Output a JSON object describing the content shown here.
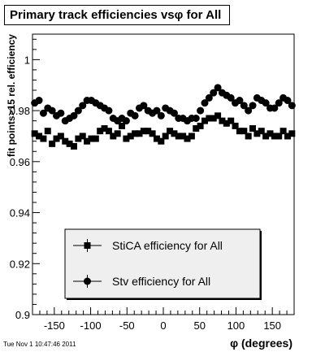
{
  "title": "Primary track efficiencies vsφ for All",
  "timestamp": "Tue Nov  1 10:47:46 2011",
  "chart_data": {
    "type": "scatter",
    "xlabel": "φ (degrees)",
    "ylabel": "fit points>15 rel. efficiency",
    "xlim": [
      -180,
      180
    ],
    "ylim": [
      0.9,
      1.01
    ],
    "xticks": [
      -150,
      -100,
      -50,
      0,
      50,
      100,
      150
    ],
    "xtick_labels": [
      "-150",
      "-100",
      "-50",
      "0",
      "50",
      "100",
      "150"
    ],
    "yticks": [
      0.9,
      0.92,
      0.94,
      0.96,
      0.98,
      1.0
    ],
    "ytick_labels": [
      "0.9",
      "0.92",
      "0.94",
      "0.96",
      "0.98",
      "1"
    ],
    "grid": false,
    "legend_position": "bottom-center",
    "series": [
      {
        "name": "StiCA efficiency  for All",
        "marker": "square",
        "color": "#000000",
        "x": [
          -177,
          -171,
          -165,
          -159,
          -153,
          -147,
          -141,
          -135,
          -129,
          -123,
          -117,
          -111,
          -105,
          -99,
          -93,
          -87,
          -81,
          -75,
          -69,
          -63,
          -57,
          -51,
          -45,
          -39,
          -33,
          -27,
          -21,
          -15,
          -9,
          -3,
          3,
          9,
          15,
          21,
          27,
          33,
          39,
          45,
          51,
          57,
          63,
          69,
          75,
          81,
          87,
          93,
          99,
          105,
          111,
          117,
          123,
          129,
          135,
          141,
          147,
          153,
          159,
          165,
          171,
          177
        ],
        "y": [
          0.971,
          0.97,
          0.969,
          0.972,
          0.967,
          0.969,
          0.97,
          0.968,
          0.967,
          0.966,
          0.969,
          0.97,
          0.968,
          0.969,
          0.969,
          0.972,
          0.973,
          0.972,
          0.97,
          0.971,
          0.974,
          0.969,
          0.97,
          0.971,
          0.971,
          0.972,
          0.972,
          0.971,
          0.969,
          0.968,
          0.97,
          0.972,
          0.971,
          0.97,
          0.97,
          0.969,
          0.97,
          0.973,
          0.974,
          0.976,
          0.977,
          0.977,
          0.978,
          0.976,
          0.975,
          0.976,
          0.974,
          0.972,
          0.972,
          0.97,
          0.973,
          0.971,
          0.972,
          0.97,
          0.971,
          0.97,
          0.97,
          0.972,
          0.97,
          0.971
        ]
      },
      {
        "name": "Stv efficiency  for All",
        "marker": "circle",
        "color": "#000000",
        "x": [
          -177,
          -171,
          -165,
          -159,
          -153,
          -147,
          -141,
          -135,
          -129,
          -123,
          -117,
          -111,
          -105,
          -99,
          -93,
          -87,
          -81,
          -75,
          -69,
          -63,
          -57,
          -51,
          -45,
          -39,
          -33,
          -27,
          -21,
          -15,
          -9,
          -3,
          3,
          9,
          15,
          21,
          27,
          33,
          39,
          45,
          51,
          57,
          63,
          69,
          75,
          81,
          87,
          93,
          99,
          105,
          111,
          117,
          123,
          129,
          135,
          141,
          147,
          153,
          159,
          165,
          171,
          177
        ],
        "y": [
          0.983,
          0.984,
          0.979,
          0.981,
          0.98,
          0.978,
          0.979,
          0.976,
          0.977,
          0.978,
          0.98,
          0.982,
          0.984,
          0.984,
          0.983,
          0.982,
          0.981,
          0.98,
          0.977,
          0.976,
          0.977,
          0.976,
          0.979,
          0.978,
          0.981,
          0.982,
          0.98,
          0.979,
          0.98,
          0.978,
          0.981,
          0.98,
          0.979,
          0.977,
          0.977,
          0.976,
          0.977,
          0.977,
          0.98,
          0.983,
          0.985,
          0.987,
          0.989,
          0.987,
          0.986,
          0.985,
          0.983,
          0.984,
          0.982,
          0.98,
          0.982,
          0.985,
          0.984,
          0.983,
          0.981,
          0.981,
          0.983,
          0.985,
          0.984,
          0.982
        ]
      }
    ]
  }
}
